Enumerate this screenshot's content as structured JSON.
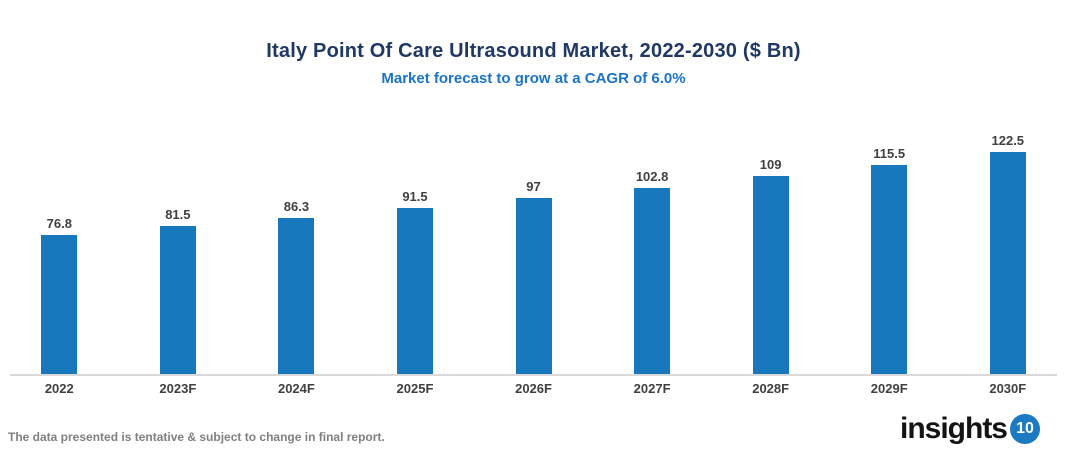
{
  "title": "Italy Point Of Care Ultrasound Market, 2022-2030 ($ Bn)",
  "subtitle": "Market forecast to grow at a CAGR of 6.0%",
  "footer": {
    "disclaimer": "The data presented is tentative & subject to change in final report."
  },
  "logo": {
    "text": "insights",
    "badge": "10"
  },
  "colors": {
    "bar": "#1878BE",
    "title": "#1F3864",
    "subtitle": "#1B74C8",
    "axis_line": "#D9D9D9",
    "label": "#404040",
    "footer_text": "#808080",
    "logo_badge": "#1B7AC2"
  },
  "chart_data": {
    "type": "bar",
    "categories": [
      "2022",
      "2023F",
      "2024F",
      "2025F",
      "2026F",
      "2027F",
      "2028F",
      "2029F",
      "2030F"
    ],
    "values": [
      76.8,
      81.5,
      86.3,
      91.5,
      97,
      102.8,
      109,
      115.5,
      122.5
    ],
    "value_labels": [
      "76.8",
      "81.5",
      "86.3",
      "91.5",
      "97",
      "102.8",
      "109",
      "115.5",
      "122.5"
    ],
    "title": "Italy Point Of Care Ultrasound Market, 2022-2030 ($ Bn)",
    "subtitle": "Market forecast to grow at a CAGR of 6.0%",
    "xlabel": "",
    "ylabel": "",
    "ylim": [
      0,
      122.5
    ],
    "grid": false,
    "legend": false,
    "bar_color": "#1878BE"
  }
}
